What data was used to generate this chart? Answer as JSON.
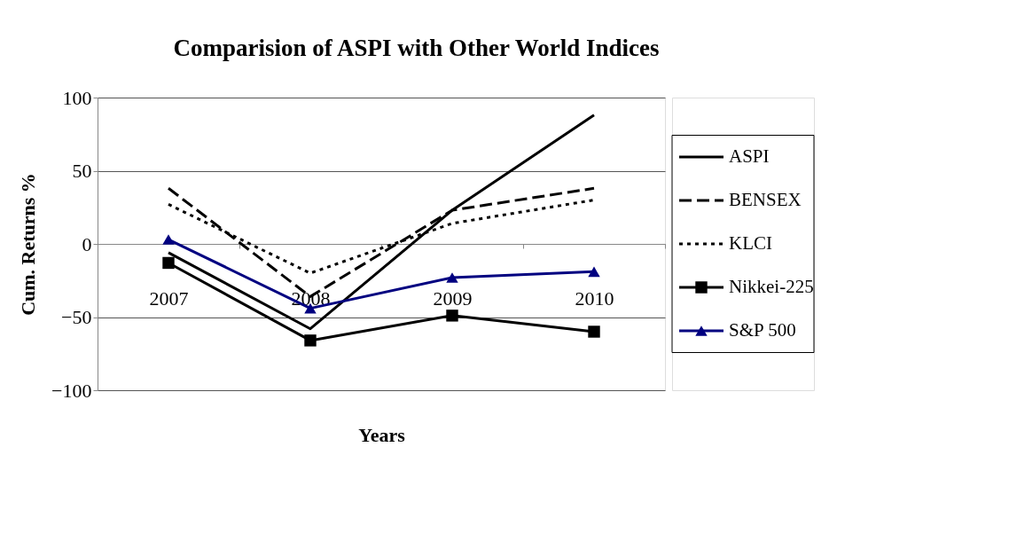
{
  "chart_data": {
    "type": "line",
    "title": "Comparision of ASPI with Other World Indices",
    "xlabel": "Years",
    "ylabel": "Cum. Returns %",
    "categories": [
      "2007",
      "2008",
      "2009",
      "2010"
    ],
    "series": [
      {
        "name": "ASPI",
        "color": "#000000",
        "line_style": "solid",
        "marker": "none",
        "values": [
          -6,
          -58,
          23,
          88
        ]
      },
      {
        "name": "BENSEX",
        "color": "#000000",
        "line_style": "dashed",
        "marker": "none",
        "values": [
          38,
          -36,
          23,
          38
        ]
      },
      {
        "name": "KLCI",
        "color": "#000000",
        "line_style": "dotted",
        "marker": "none",
        "values": [
          27,
          -20,
          14,
          30
        ]
      },
      {
        "name": "Nikkei-225",
        "color": "#000000",
        "line_style": "solid",
        "marker": "square",
        "values": [
          -13,
          -66,
          -49,
          -60
        ]
      },
      {
        "name": "S&P 500",
        "color": "#000080",
        "line_style": "solid",
        "marker": "triangle",
        "values": [
          3,
          -44,
          -23,
          -19
        ]
      }
    ],
    "ylim": [
      -100,
      100
    ],
    "yticks": [
      -100,
      -50,
      0,
      50,
      100
    ],
    "grid": "y",
    "legend": "right"
  }
}
